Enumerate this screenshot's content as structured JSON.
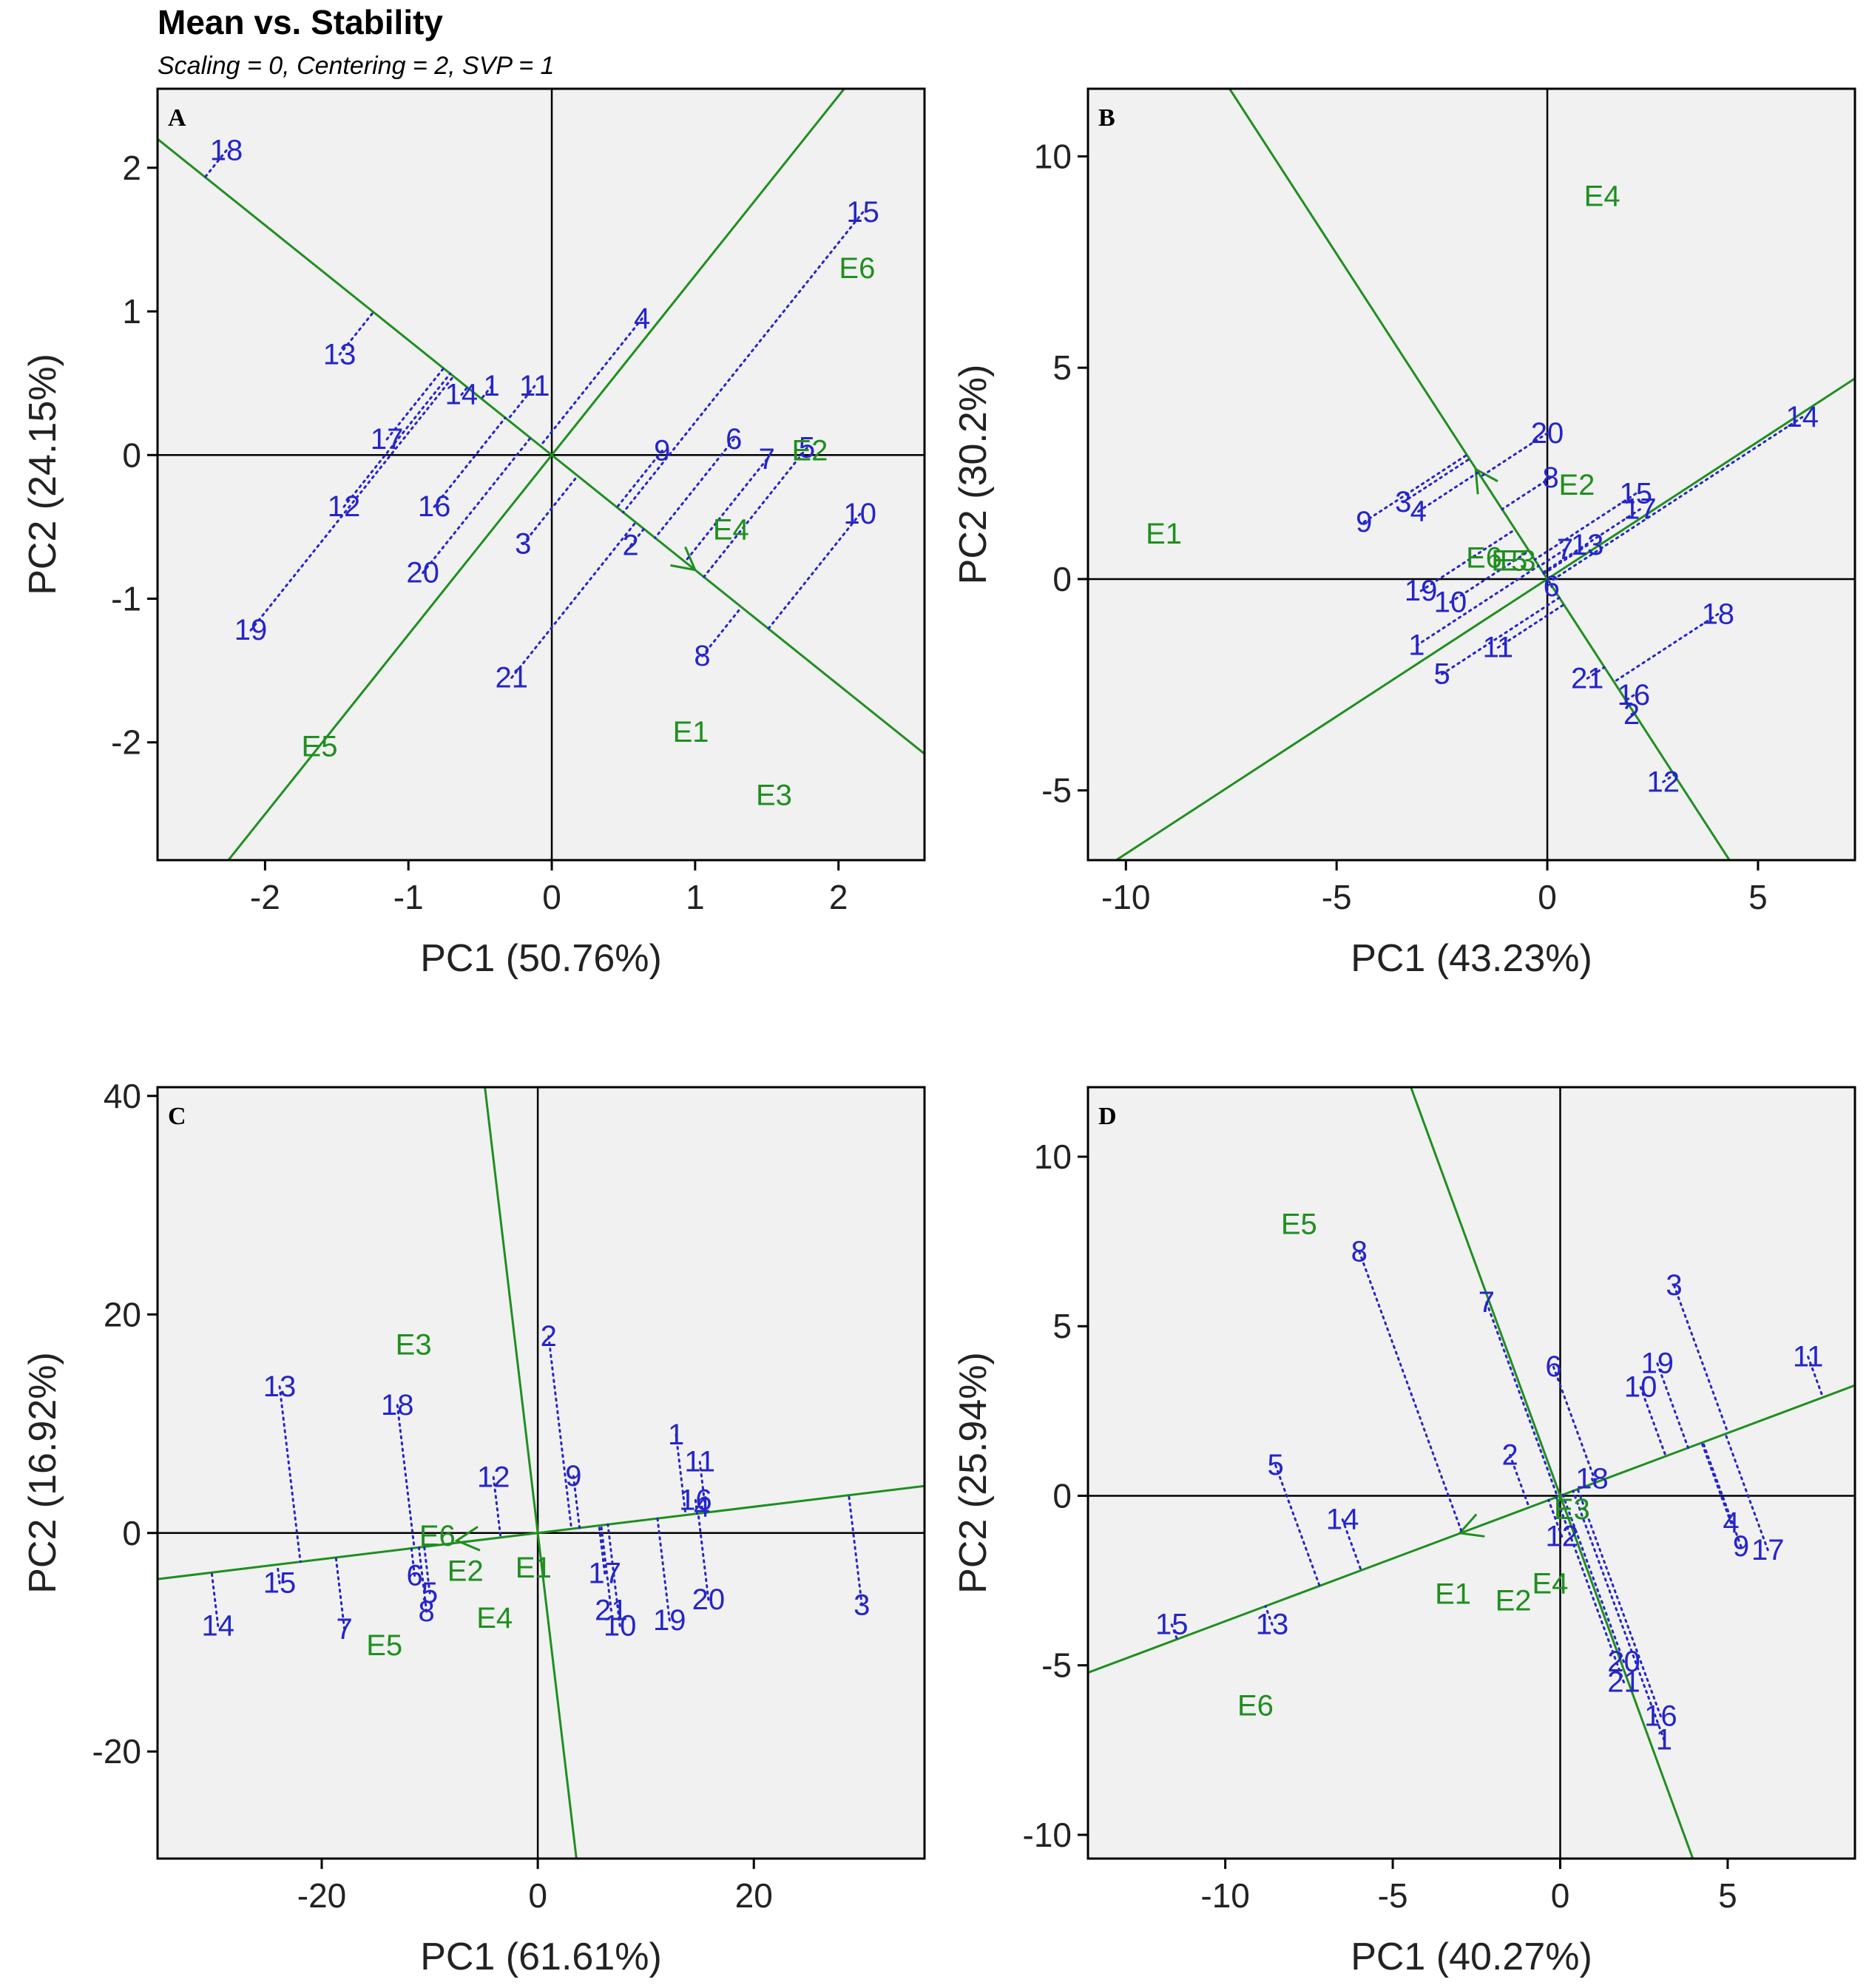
{
  "header": {
    "title": "Mean vs. Stability",
    "subtitle": "Scaling = 0, Centering = 2, SVP = 1"
  },
  "colors": {
    "genotype": "#2525c8",
    "environment": "#1f8f1f",
    "line": "#1f8f1f",
    "plot_bg": "#f1f1f1"
  },
  "chart_data": [
    {
      "type": "scatter",
      "panel": "A",
      "xlabel": "PC1 (50.76%)",
      "ylabel": "PC2 (24.15%)",
      "xlim": [
        -2.75,
        2.6
      ],
      "ylim": [
        -2.82,
        2.55
      ],
      "xticks": [
        -2,
        -1,
        0,
        1,
        2
      ],
      "yticks": [
        -2,
        -1,
        0,
        1,
        2
      ],
      "aec_direction": [
        1,
        -0.8
      ],
      "arrow_tip": [
        1.0,
        -0.8
      ],
      "genotypes": [
        {
          "label": "1",
          "x": -0.42,
          "y": 0.48
        },
        {
          "label": "2",
          "x": 0.55,
          "y": -0.63
        },
        {
          "label": "3",
          "x": -0.2,
          "y": -0.62
        },
        {
          "label": "4",
          "x": 0.63,
          "y": 0.95
        },
        {
          "label": "5",
          "x": 1.78,
          "y": 0.05
        },
        {
          "label": "6",
          "x": 1.27,
          "y": 0.11
        },
        {
          "label": "7",
          "x": 1.5,
          "y": -0.03
        },
        {
          "label": "8",
          "x": 1.05,
          "y": -1.4
        },
        {
          "label": "9",
          "x": 0.77,
          "y": 0.03
        },
        {
          "label": "10",
          "x": 2.15,
          "y": -0.41
        },
        {
          "label": "11",
          "x": -0.12,
          "y": 0.48
        },
        {
          "label": "12",
          "x": -1.45,
          "y": -0.36
        },
        {
          "label": "13",
          "x": -1.48,
          "y": 0.7
        },
        {
          "label": "14",
          "x": -0.63,
          "y": 0.42
        },
        {
          "label": "15",
          "x": 2.17,
          "y": 1.69
        },
        {
          "label": "16",
          "x": -0.82,
          "y": -0.36
        },
        {
          "label": "17",
          "x": -1.15,
          "y": 0.11
        },
        {
          "label": "18",
          "x": -2.27,
          "y": 2.12
        },
        {
          "label": "19",
          "x": -2.1,
          "y": -1.22
        },
        {
          "label": "20",
          "x": -0.9,
          "y": -0.82
        },
        {
          "label": "21",
          "x": -0.28,
          "y": -1.55
        }
      ],
      "environments": [
        {
          "label": "E1",
          "x": 0.97,
          "y": -1.93
        },
        {
          "label": "E2",
          "x": 1.8,
          "y": 0.03
        },
        {
          "label": "E3",
          "x": 1.55,
          "y": -2.37
        },
        {
          "label": "E4",
          "x": 1.25,
          "y": -0.52
        },
        {
          "label": "E5",
          "x": -1.62,
          "y": -2.03
        },
        {
          "label": "E6",
          "x": 2.13,
          "y": 1.3
        }
      ]
    },
    {
      "type": "scatter",
      "panel": "B",
      "xlabel": "PC1 (43.23%)",
      "ylabel": "PC2 (30.2%)",
      "xlim": [
        -10.9,
        7.3
      ],
      "ylim": [
        -6.65,
        11.6
      ],
      "xticks": [
        -10,
        -5,
        0,
        5
      ],
      "yticks": [
        -5,
        0,
        5,
        10
      ],
      "aec_direction": [
        -0.65,
        1
      ],
      "arrow_tip": [
        -1.7,
        2.6
      ],
      "genotypes": [
        {
          "label": "1",
          "x": -3.1,
          "y": -1.57
        },
        {
          "label": "2",
          "x": 2.0,
          "y": -3.2
        },
        {
          "label": "3",
          "x": -3.42,
          "y": 1.82
        },
        {
          "label": "4",
          "x": -3.06,
          "y": 1.6
        },
        {
          "label": "5",
          "x": -2.5,
          "y": -2.25
        },
        {
          "label": "6",
          "x": 0.1,
          "y": -0.18
        },
        {
          "label": "7",
          "x": 0.42,
          "y": 0.7
        },
        {
          "label": "8",
          "x": 0.08,
          "y": 2.4
        },
        {
          "label": "9",
          "x": -4.35,
          "y": 1.35
        },
        {
          "label": "10",
          "x": -2.3,
          "y": -0.55
        },
        {
          "label": "11",
          "x": -1.17,
          "y": -1.62
        },
        {
          "label": "12",
          "x": 2.75,
          "y": -4.8
        },
        {
          "label": "13",
          "x": 0.95,
          "y": 0.8
        },
        {
          "label": "14",
          "x": 6.05,
          "y": 3.83
        },
        {
          "label": "15",
          "x": 2.1,
          "y": 2.02
        },
        {
          "label": "16",
          "x": 2.05,
          "y": -2.75
        },
        {
          "label": "17",
          "x": 2.2,
          "y": 1.65
        },
        {
          "label": "18",
          "x": 4.05,
          "y": -0.83
        },
        {
          "label": "19",
          "x": -3.0,
          "y": -0.28
        },
        {
          "label": "20",
          "x": 0.0,
          "y": 3.45
        },
        {
          "label": "21",
          "x": 0.95,
          "y": -2.35
        }
      ],
      "environments": [
        {
          "label": "E1",
          "x": -9.1,
          "y": 1.07
        },
        {
          "label": "E2",
          "x": 0.7,
          "y": 2.22
        },
        {
          "label": "E3",
          "x": -0.7,
          "y": 0.43
        },
        {
          "label": "E4",
          "x": 1.3,
          "y": 9.05
        },
        {
          "label": "E5",
          "x": -0.9,
          "y": 0.43
        },
        {
          "label": "E6",
          "x": -1.5,
          "y": 0.5
        }
      ]
    },
    {
      "type": "scatter",
      "panel": "C",
      "xlabel": "PC1 (61.61%)",
      "ylabel": "PC2 (16.92%)",
      "xlim": [
        -35.2,
        35.8
      ],
      "ylim": [
        -29.8,
        40.8
      ],
      "xticks": [
        -20,
        0,
        20
      ],
      "yticks": [
        -20,
        0,
        20,
        40
      ],
      "aec_direction": [
        -1,
        -0.12
      ],
      "arrow_tip": [
        -7.5,
        -0.7
      ],
      "genotypes": [
        {
          "label": "1",
          "x": 12.8,
          "y": 9.0
        },
        {
          "label": "2",
          "x": 1.0,
          "y": 18.0
        },
        {
          "label": "3",
          "x": 30.0,
          "y": -6.6
        },
        {
          "label": "4",
          "x": 15.2,
          "y": 2.4
        },
        {
          "label": "5",
          "x": -10.0,
          "y": -5.5
        },
        {
          "label": "6",
          "x": -11.4,
          "y": -3.9
        },
        {
          "label": "7",
          "x": -17.9,
          "y": -8.8
        },
        {
          "label": "8",
          "x": -10.3,
          "y": -7.2
        },
        {
          "label": "9",
          "x": 3.3,
          "y": 5.2
        },
        {
          "label": "10",
          "x": 7.6,
          "y": -8.5
        },
        {
          "label": "11",
          "x": 15.0,
          "y": 6.5
        },
        {
          "label": "12",
          "x": -4.1,
          "y": 5.1
        },
        {
          "label": "13",
          "x": -23.9,
          "y": 13.4
        },
        {
          "label": "14",
          "x": -29.6,
          "y": -8.5
        },
        {
          "label": "15",
          "x": -23.9,
          "y": -4.6
        },
        {
          "label": "16",
          "x": 14.6,
          "y": 3.0
        },
        {
          "label": "17",
          "x": 6.2,
          "y": -3.7
        },
        {
          "label": "18",
          "x": -13.0,
          "y": 11.7
        },
        {
          "label": "19",
          "x": 12.2,
          "y": -8.0
        },
        {
          "label": "20",
          "x": 15.8,
          "y": -6.1
        },
        {
          "label": "21",
          "x": 6.8,
          "y": -7.1
        }
      ],
      "environments": [
        {
          "label": "E1",
          "x": -0.4,
          "y": -3.2
        },
        {
          "label": "E2",
          "x": -6.7,
          "y": -3.5
        },
        {
          "label": "E3",
          "x": -11.5,
          "y": 17.2
        },
        {
          "label": "E4",
          "x": -4.0,
          "y": -7.8
        },
        {
          "label": "E5",
          "x": -14.2,
          "y": -10.3
        },
        {
          "label": "E6",
          "x": -9.3,
          "y": -0.3
        }
      ]
    },
    {
      "type": "scatter",
      "panel": "D",
      "xlabel": "PC1 (40.27%)",
      "ylabel": "PC2 (25.94%)",
      "xlim": [
        -14.1,
        8.8
      ],
      "ylim": [
        -10.7,
        12.05
      ],
      "xticks": [
        -10,
        -5,
        0,
        5
      ],
      "yticks": [
        -10,
        -5,
        0,
        5,
        10
      ],
      "aec_direction": [
        -1,
        -0.37
      ],
      "arrow_tip": [
        -3.0,
        -1.1
      ],
      "genotypes": [
        {
          "label": "1",
          "x": 3.1,
          "y": -7.2
        },
        {
          "label": "2",
          "x": -1.5,
          "y": 1.2
        },
        {
          "label": "3",
          "x": 3.4,
          "y": 6.2
        },
        {
          "label": "4",
          "x": 5.1,
          "y": -0.8
        },
        {
          "label": "5",
          "x": -8.5,
          "y": 0.9
        },
        {
          "label": "6",
          "x": -0.2,
          "y": 3.8
        },
        {
          "label": "7",
          "x": -2.2,
          "y": 5.7
        },
        {
          "label": "8",
          "x": -6.0,
          "y": 7.2
        },
        {
          "label": "9",
          "x": 5.4,
          "y": -1.5
        },
        {
          "label": "10",
          "x": 2.4,
          "y": 3.2
        },
        {
          "label": "11",
          "x": 7.4,
          "y": 4.1
        },
        {
          "label": "12",
          "x": 0.05,
          "y": -1.2
        },
        {
          "label": "13",
          "x": -8.6,
          "y": -3.8
        },
        {
          "label": "14",
          "x": -6.5,
          "y": -0.7
        },
        {
          "label": "15",
          "x": -11.6,
          "y": -3.8
        },
        {
          "label": "16",
          "x": 3.0,
          "y": -6.5
        },
        {
          "label": "17",
          "x": 6.2,
          "y": -1.6
        },
        {
          "label": "18",
          "x": 0.95,
          "y": 0.5
        },
        {
          "label": "19",
          "x": 2.9,
          "y": 3.9
        },
        {
          "label": "20",
          "x": 1.9,
          "y": -4.9
        },
        {
          "label": "21",
          "x": 1.9,
          "y": -5.5
        }
      ],
      "environments": [
        {
          "label": "E1",
          "x": -3.2,
          "y": -2.9
        },
        {
          "label": "E2",
          "x": -1.4,
          "y": -3.1
        },
        {
          "label": "E3",
          "x": 0.35,
          "y": -0.4
        },
        {
          "label": "E4",
          "x": -0.3,
          "y": -2.6
        },
        {
          "label": "E5",
          "x": -7.8,
          "y": 8.0
        },
        {
          "label": "E6",
          "x": -9.1,
          "y": -6.2
        }
      ]
    }
  ]
}
